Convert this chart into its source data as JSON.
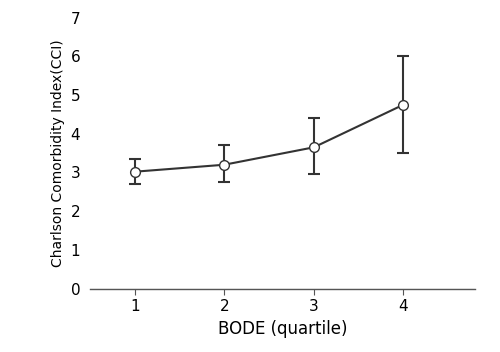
{
  "x": [
    1,
    2,
    3,
    4
  ],
  "y": [
    3.02,
    3.2,
    3.65,
    4.75
  ],
  "yerr_lower": [
    0.32,
    0.45,
    0.7,
    1.25
  ],
  "yerr_upper": [
    0.33,
    0.5,
    0.75,
    1.25
  ],
  "xlabel": "BODE (quartile)",
  "ylabel": "Charlson Comorbidity Index(CCI)",
  "xlim": [
    0.5,
    4.8
  ],
  "ylim": [
    0,
    7
  ],
  "yticks": [
    0,
    1,
    2,
    3,
    4,
    5,
    6,
    7
  ],
  "xticks": [
    1,
    2,
    3,
    4
  ],
  "line_color": "#333333",
  "marker_face_color": "white",
  "marker_edge_color": "#333333",
  "marker_size": 7,
  "line_width": 1.5,
  "cap_size": 4,
  "background_color": "#ffffff",
  "xlabel_fontsize": 12,
  "ylabel_fontsize": 10,
  "tick_labelsize": 11
}
